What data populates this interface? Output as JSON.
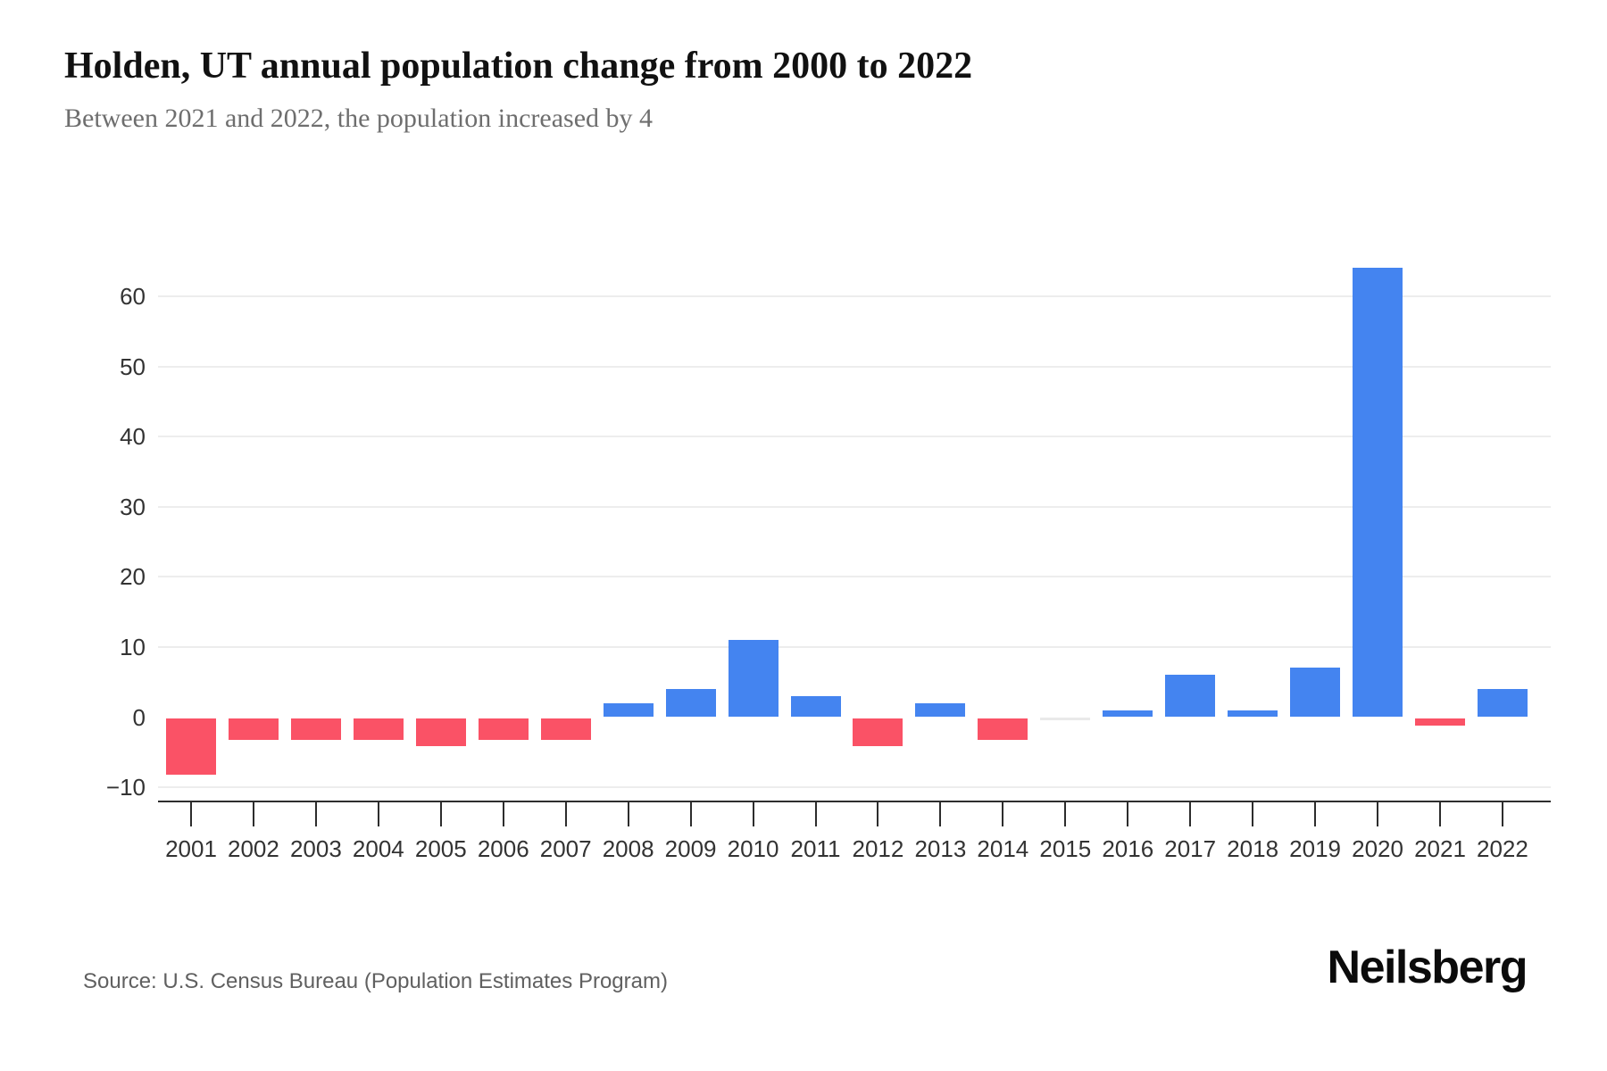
{
  "header": {
    "title": "Holden, UT annual population change from 2000 to 2022",
    "subtitle": "Between 2021 and 2022, the population increased by 4"
  },
  "footer": {
    "source": "Source: U.S. Census Bureau (Population Estimates Program)",
    "brand": "Neilsberg"
  },
  "colors": {
    "positive_bar": "#4484F0",
    "negative_bar": "#FA5266",
    "zero_bar": "#E9E9E9",
    "gridline": "#EDEDED",
    "axis": "#2D2D2D",
    "tick_label": "#333333",
    "subtitle_text": "#6E6E6E",
    "source_text": "#606060"
  },
  "chart_data": {
    "type": "bar",
    "title": "Holden, UT annual population change from 2000 to 2022",
    "subtitle": "Between 2021 and 2022, the population increased by 4",
    "categories": [
      "2001",
      "2002",
      "2003",
      "2004",
      "2005",
      "2006",
      "2007",
      "2008",
      "2009",
      "2010",
      "2011",
      "2012",
      "2013",
      "2014",
      "2015",
      "2016",
      "2017",
      "2018",
      "2019",
      "2020",
      "2021",
      "2022"
    ],
    "values": [
      -8,
      -3,
      -3,
      -3,
      -4,
      -3,
      -3,
      2,
      4,
      11,
      3,
      -4,
      2,
      -3,
      0,
      1,
      6,
      1,
      7,
      64,
      -1,
      4
    ],
    "xlabel": "",
    "ylabel": "",
    "ylim": [
      -12,
      68
    ],
    "yticks": [
      -10,
      0,
      10,
      20,
      30,
      40,
      50,
      60
    ],
    "grid": "horizontal",
    "legend": false,
    "color_rule": "blue for increase, red for decrease, light gray stub for zero"
  }
}
